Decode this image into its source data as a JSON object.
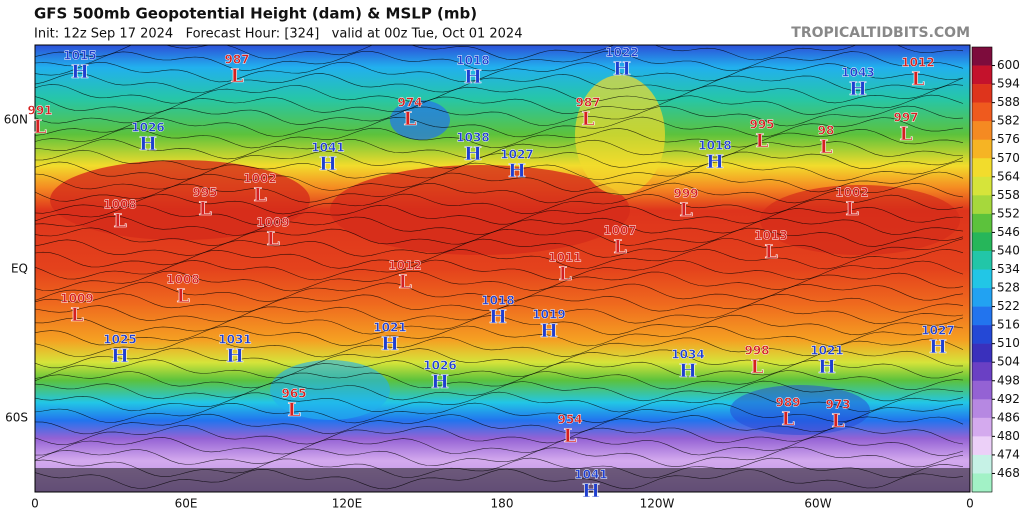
{
  "title": "GFS 500mb Geopotential Height (dam) & MSLP (mb)",
  "subtitle": "Init: 12z Sep 17 2024   Forecast Hour: [324]   valid at 00z Tue, Oct 01 2024",
  "credit": "TROPICALTIDBITS.COM",
  "x_labels": [
    "0",
    "60E",
    "120E",
    "180",
    "120W",
    "60W",
    "0"
  ],
  "y_labels": [
    "60N",
    "EQ",
    "60S"
  ],
  "colorbar": {
    "levels": [
      600,
      594,
      588,
      582,
      576,
      570,
      564,
      558,
      552,
      546,
      540,
      534,
      528,
      522,
      516,
      510,
      504,
      498,
      492,
      486,
      480,
      474,
      468
    ],
    "colors": [
      "#7d0c3c",
      "#c4122c",
      "#de341c",
      "#ef5a1e",
      "#f58a22",
      "#f6b424",
      "#f2dc2c",
      "#d6e43a",
      "#a6d83c",
      "#5cc23c",
      "#26b65a",
      "#22c6a8",
      "#22c6e6",
      "#22a2f2",
      "#2274ee",
      "#2448d6",
      "#3a30bc",
      "#6a40c4",
      "#9462d4",
      "#b688e2",
      "#d4aaee",
      "#ecd0f8",
      "#c6f2e6",
      "#a2f2c6"
    ]
  },
  "centers": [
    {
      "type": "H",
      "value": 1015
    },
    {
      "type": "L",
      "value": 987
    },
    {
      "type": "L",
      "value": 991
    },
    {
      "type": "H",
      "value": 1026
    },
    {
      "type": "L",
      "value": 974
    },
    {
      "type": "H",
      "value": 1041
    },
    {
      "type": "H",
      "value": 1018
    },
    {
      "type": "H",
      "value": 1022
    },
    {
      "type": "L",
      "value": 987
    },
    {
      "type": "H",
      "value": 1038
    },
    {
      "type": "H",
      "value": 1027
    },
    {
      "type": "H",
      "value": 1018
    },
    {
      "type": "L",
      "value": 995
    },
    {
      "type": "L",
      "value": 98
    },
    {
      "type": "H",
      "value": 1043
    },
    {
      "type": "L",
      "value": 1012
    },
    {
      "type": "L",
      "value": 997
    },
    {
      "type": "L",
      "value": 1002
    },
    {
      "type": "L",
      "value": 995
    },
    {
      "type": "L",
      "value": 1009
    },
    {
      "type": "L",
      "value": 1008
    },
    {
      "type": "L",
      "value": 999
    },
    {
      "type": "L",
      "value": 1007
    },
    {
      "type": "L",
      "value": 1002
    },
    {
      "type": "L",
      "value": 1013
    },
    {
      "type": "L",
      "value": 1011
    },
    {
      "type": "L",
      "value": 1012
    },
    {
      "type": "L",
      "value": 1008
    },
    {
      "type": "L",
      "value": 1009
    },
    {
      "type": "H",
      "value": 1018
    },
    {
      "type": "H",
      "value": 1019
    },
    {
      "type": "H",
      "value": 1021
    },
    {
      "type": "H",
      "value": 1025
    },
    {
      "type": "H",
      "value": 1031
    },
    {
      "type": "H",
      "value": 1026
    },
    {
      "type": "H",
      "value": 1034
    },
    {
      "type": "L",
      "value": 998
    },
    {
      "type": "H",
      "value": 1021
    },
    {
      "type": "H",
      "value": 1027
    },
    {
      "type": "L",
      "value": 965
    },
    {
      "type": "L",
      "value": 989
    },
    {
      "type": "L",
      "value": 973
    },
    {
      "type": "L",
      "value": 954
    },
    {
      "type": "H",
      "value": 1041
    }
  ]
}
